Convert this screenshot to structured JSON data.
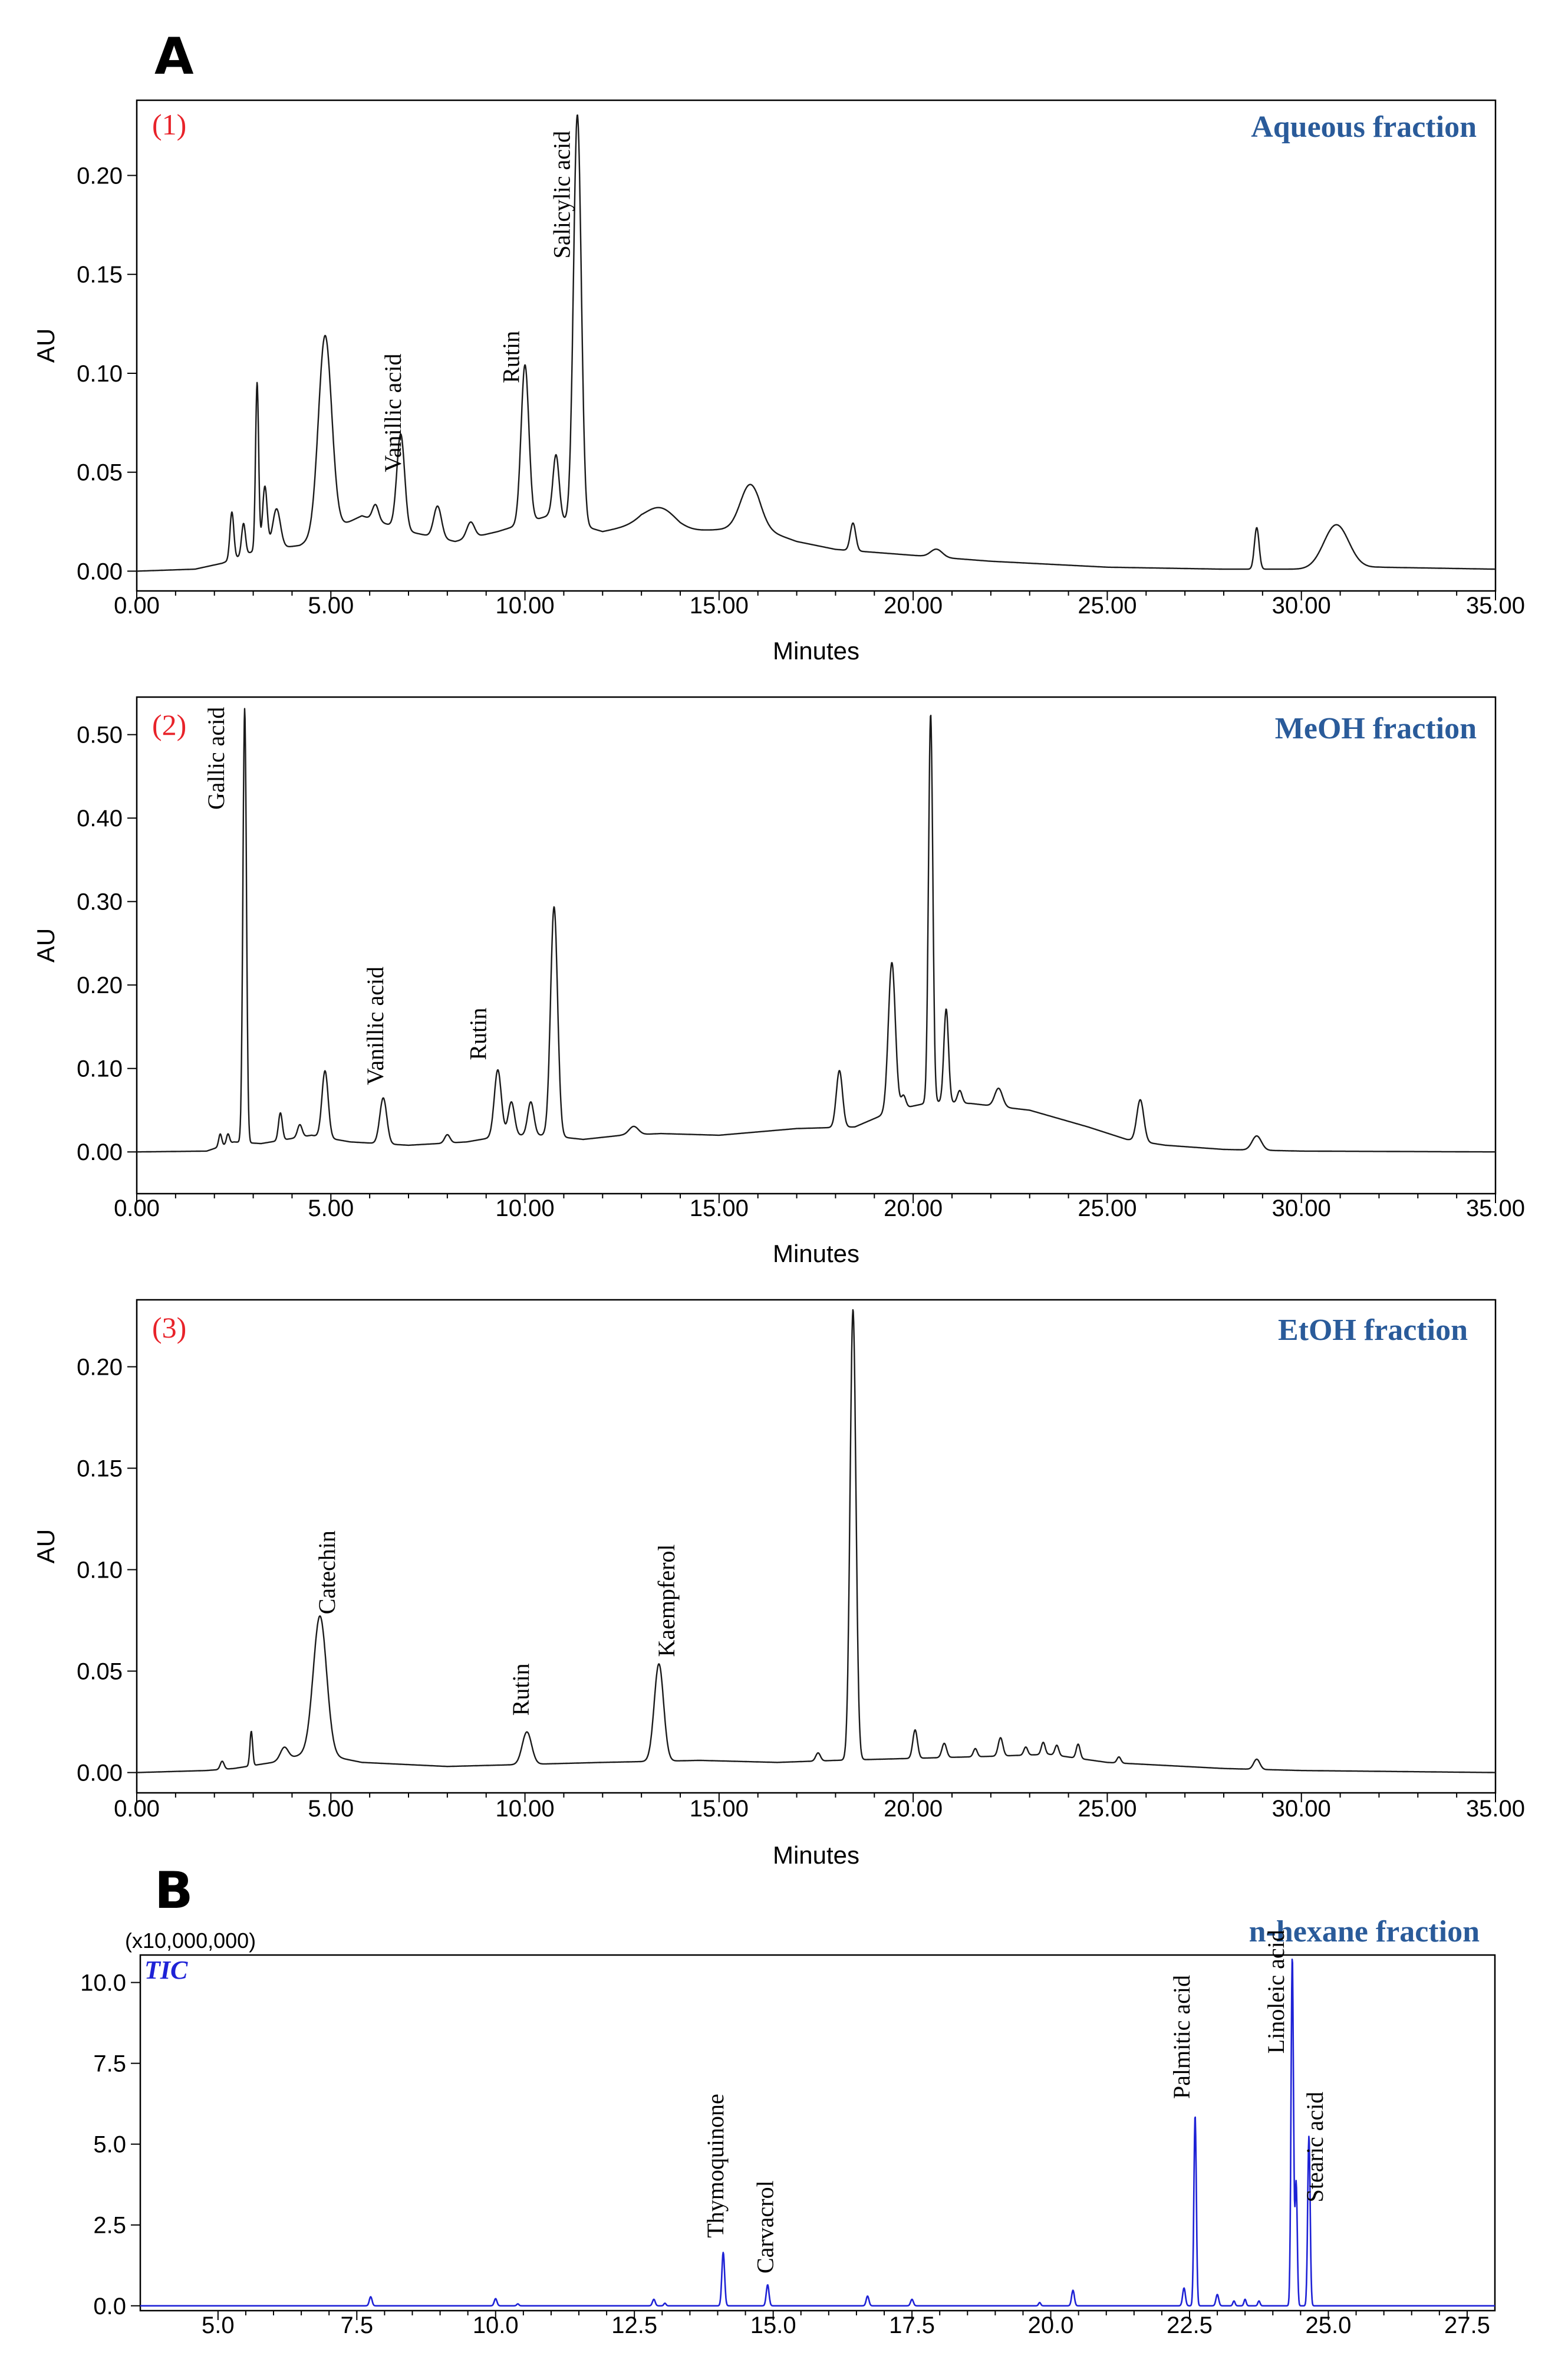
{
  "figure_labels": {
    "panel_a": "A",
    "panel_b": "B"
  },
  "colors": {
    "fraction_label": "#2a5b9a",
    "panel_number": "#e8232a",
    "tic_trace": "#1e22d6",
    "hplc_trace": "#1a1a1a"
  },
  "chart_data": [
    {
      "type": "line",
      "panel_number": "(1)",
      "title": "Aqueous fraction",
      "xlabel": "Minutes",
      "ylabel": "AU",
      "xlim": [
        0,
        35
      ],
      "ylim": [
        -0.01,
        0.238
      ],
      "xticks": [
        0,
        5,
        10,
        15,
        20,
        25,
        30,
        35
      ],
      "xtick_labels": [
        "0.00",
        "5.00",
        "10.00",
        "15.00",
        "20.00",
        "25.00",
        "30.00",
        "35.00"
      ],
      "yticks": [
        0,
        0.05,
        0.1,
        0.15,
        0.2
      ],
      "ytick_labels": [
        "0.00",
        "0.05",
        "0.10",
        "0.15",
        "0.20"
      ],
      "baseline": [
        [
          0,
          0
        ],
        [
          1.5,
          0.001
        ],
        [
          2.2,
          0.004
        ],
        [
          3.0,
          0.01
        ],
        [
          4.2,
          0.013
        ],
        [
          5.8,
          0.028
        ],
        [
          7.0,
          0.02
        ],
        [
          8.2,
          0.015
        ],
        [
          9.3,
          0.02
        ],
        [
          10.6,
          0.028
        ],
        [
          12.0,
          0.02
        ],
        [
          13.0,
          0.024
        ],
        [
          14.0,
          0.02
        ],
        [
          16.0,
          0.022
        ],
        [
          17.0,
          0.015
        ],
        [
          18.0,
          0.011
        ],
        [
          20.0,
          0.008
        ],
        [
          22.0,
          0.005
        ],
        [
          25.0,
          0.002
        ],
        [
          28.0,
          0.001
        ],
        [
          30.0,
          0.001
        ],
        [
          32.0,
          0.002
        ],
        [
          35.0,
          0.001
        ]
      ],
      "peaks": [
        {
          "x": 2.45,
          "height": 0.024,
          "width": 0.05
        },
        {
          "x": 2.75,
          "height": 0.016,
          "width": 0.05
        },
        {
          "x": 3.1,
          "height": 0.085,
          "width": 0.04
        },
        {
          "x": 3.3,
          "height": 0.032,
          "width": 0.06
        },
        {
          "x": 3.6,
          "height": 0.02,
          "width": 0.1
        },
        {
          "x": 4.85,
          "height": 0.1,
          "width": 0.17
        },
        {
          "x": 6.15,
          "height": 0.008,
          "width": 0.08
        },
        {
          "x": 6.8,
          "height": 0.048,
          "width": 0.1
        },
        {
          "x": 7.75,
          "height": 0.016,
          "width": 0.1
        },
        {
          "x": 8.6,
          "height": 0.008,
          "width": 0.1
        },
        {
          "x": 10.0,
          "height": 0.08,
          "width": 0.1
        },
        {
          "x": 10.8,
          "height": 0.032,
          "width": 0.08
        },
        {
          "x": 11.35,
          "height": 0.207,
          "width": 0.1
        },
        {
          "x": 13.5,
          "height": 0.01,
          "width": 0.4
        },
        {
          "x": 15.8,
          "height": 0.022,
          "width": 0.25
        },
        {
          "x": 18.45,
          "height": 0.014,
          "width": 0.07
        },
        {
          "x": 20.6,
          "height": 0.004,
          "width": 0.15
        },
        {
          "x": 28.85,
          "height": 0.021,
          "width": 0.06
        },
        {
          "x": 30.9,
          "height": 0.022,
          "width": 0.32
        }
      ],
      "annotations": [
        {
          "label": "Vanillic acid",
          "x": 6.8,
          "y": 0.05
        },
        {
          "label": "Rutin",
          "x": 9.85,
          "y": 0.095
        },
        {
          "label": "Salicylic acid",
          "x": 11.15,
          "y": 0.158
        }
      ]
    },
    {
      "type": "line",
      "panel_number": "(2)",
      "title": "MeOH fraction",
      "xlabel": "Minutes",
      "ylabel": "AU",
      "xlim": [
        0,
        35
      ],
      "ylim": [
        -0.05,
        0.545
      ],
      "xticks": [
        0,
        5,
        10,
        15,
        20,
        25,
        30,
        35
      ],
      "xtick_labels": [
        "0.00",
        "5.00",
        "10.00",
        "15.00",
        "20.00",
        "25.00",
        "30.00",
        "35.00"
      ],
      "yticks": [
        0,
        0.1,
        0.2,
        0.3,
        0.4,
        0.5
      ],
      "ytick_labels": [
        "0.00",
        "0.10",
        "0.20",
        "0.30",
        "0.40",
        "0.50"
      ],
      "baseline": [
        [
          0,
          0
        ],
        [
          1.8,
          0.001
        ],
        [
          2.5,
          0.012
        ],
        [
          3.2,
          0.01
        ],
        [
          4.5,
          0.02
        ],
        [
          5.5,
          0.012
        ],
        [
          7.0,
          0.008
        ],
        [
          8.5,
          0.012
        ],
        [
          9.5,
          0.02
        ],
        [
          10.5,
          0.02
        ],
        [
          11.5,
          0.015
        ],
        [
          12.5,
          0.02
        ],
        [
          13.5,
          0.022
        ],
        [
          15.0,
          0.02
        ],
        [
          17.0,
          0.028
        ],
        [
          18.5,
          0.03
        ],
        [
          19.5,
          0.05
        ],
        [
          20.5,
          0.06
        ],
        [
          21.5,
          0.058
        ],
        [
          23.0,
          0.05
        ],
        [
          24.5,
          0.03
        ],
        [
          25.5,
          0.015
        ],
        [
          26.5,
          0.008
        ],
        [
          28.0,
          0.003
        ],
        [
          30.0,
          0.001
        ],
        [
          35.0,
          0
        ]
      ],
      "peaks": [
        {
          "x": 2.15,
          "height": 0.015,
          "width": 0.04
        },
        {
          "x": 2.35,
          "height": 0.012,
          "width": 0.04
        },
        {
          "x": 2.78,
          "height": 0.52,
          "width": 0.045
        },
        {
          "x": 3.7,
          "height": 0.033,
          "width": 0.05
        },
        {
          "x": 4.2,
          "height": 0.015,
          "width": 0.06
        },
        {
          "x": 4.85,
          "height": 0.08,
          "width": 0.08
        },
        {
          "x": 6.35,
          "height": 0.055,
          "width": 0.09
        },
        {
          "x": 8.0,
          "height": 0.01,
          "width": 0.07
        },
        {
          "x": 9.3,
          "height": 0.08,
          "width": 0.09
        },
        {
          "x": 9.65,
          "height": 0.04,
          "width": 0.08
        },
        {
          "x": 10.15,
          "height": 0.04,
          "width": 0.08
        },
        {
          "x": 10.75,
          "height": 0.275,
          "width": 0.09
        },
        {
          "x": 12.8,
          "height": 0.01,
          "width": 0.12
        },
        {
          "x": 18.1,
          "height": 0.068,
          "width": 0.08
        },
        {
          "x": 19.45,
          "height": 0.178,
          "width": 0.09
        },
        {
          "x": 19.75,
          "height": 0.015,
          "width": 0.06
        },
        {
          "x": 20.45,
          "height": 0.465,
          "width": 0.055
        },
        {
          "x": 20.85,
          "height": 0.112,
          "width": 0.06
        },
        {
          "x": 21.2,
          "height": 0.015,
          "width": 0.06
        },
        {
          "x": 22.2,
          "height": 0.022,
          "width": 0.1
        },
        {
          "x": 25.85,
          "height": 0.05,
          "width": 0.09
        },
        {
          "x": 28.85,
          "height": 0.017,
          "width": 0.12
        }
      ],
      "annotations": [
        {
          "label": "Gallic acid",
          "x": 2.25,
          "y": 0.41
        },
        {
          "label": "Vanillic acid",
          "x": 6.35,
          "y": 0.08
        },
        {
          "label": "Rutin",
          "x": 9.0,
          "y": 0.11
        }
      ]
    },
    {
      "type": "line",
      "panel_number": "(3)",
      "title": "EtOH fraction",
      "xlabel": "Minutes",
      "ylabel": "AU",
      "xlim": [
        0,
        35
      ],
      "ylim": [
        -0.01,
        0.233
      ],
      "xticks": [
        0,
        5,
        10,
        15,
        20,
        25,
        30,
        35
      ],
      "xtick_labels": [
        "0.00",
        "5.00",
        "10.00",
        "15.00",
        "20.00",
        "25.00",
        "30.00",
        "35.00"
      ],
      "yticks": [
        0,
        0.05,
        0.1,
        0.15,
        0.2
      ],
      "ytick_labels": [
        "0.00",
        "0.05",
        "0.10",
        "0.15",
        "0.20"
      ],
      "baseline": [
        [
          0,
          0
        ],
        [
          1.8,
          0.001
        ],
        [
          2.5,
          0.002
        ],
        [
          3.5,
          0.005
        ],
        [
          4.5,
          0.01
        ],
        [
          5.8,
          0.005
        ],
        [
          8.0,
          0.003
        ],
        [
          10.0,
          0.004
        ],
        [
          12.0,
          0.005
        ],
        [
          14.5,
          0.006
        ],
        [
          16.5,
          0.005
        ],
        [
          18.0,
          0.006
        ],
        [
          20.0,
          0.007
        ],
        [
          22.0,
          0.008
        ],
        [
          23.5,
          0.009
        ],
        [
          25.0,
          0.005
        ],
        [
          28.0,
          0.002
        ],
        [
          30.0,
          0.001
        ],
        [
          35.0,
          0
        ]
      ],
      "peaks": [
        {
          "x": 2.2,
          "height": 0.004,
          "width": 0.05
        },
        {
          "x": 2.95,
          "height": 0.017,
          "width": 0.035
        },
        {
          "x": 3.8,
          "height": 0.006,
          "width": 0.1
        },
        {
          "x": 4.72,
          "height": 0.068,
          "width": 0.17
        },
        {
          "x": 10.05,
          "height": 0.016,
          "width": 0.12
        },
        {
          "x": 13.45,
          "height": 0.048,
          "width": 0.12
        },
        {
          "x": 17.55,
          "height": 0.004,
          "width": 0.06
        },
        {
          "x": 18.45,
          "height": 0.222,
          "width": 0.075
        },
        {
          "x": 20.05,
          "height": 0.014,
          "width": 0.06
        },
        {
          "x": 20.8,
          "height": 0.007,
          "width": 0.06
        },
        {
          "x": 21.6,
          "height": 0.004,
          "width": 0.05
        },
        {
          "x": 22.25,
          "height": 0.009,
          "width": 0.06
        },
        {
          "x": 22.9,
          "height": 0.004,
          "width": 0.05
        },
        {
          "x": 23.35,
          "height": 0.006,
          "width": 0.05
        },
        {
          "x": 23.7,
          "height": 0.005,
          "width": 0.05
        },
        {
          "x": 24.25,
          "height": 0.007,
          "width": 0.05
        },
        {
          "x": 25.3,
          "height": 0.003,
          "width": 0.05
        },
        {
          "x": 28.85,
          "height": 0.005,
          "width": 0.08
        }
      ],
      "annotations": [
        {
          "label": "Catechin",
          "x": 5.1,
          "y": 0.078
        },
        {
          "label": "Rutin",
          "x": 10.1,
          "y": 0.028
        },
        {
          "label": "Kaempferol",
          "x": 13.85,
          "y": 0.057
        }
      ]
    },
    {
      "type": "line",
      "panel_number": "TIC",
      "title": "n-hexane fraction",
      "multiplier": "(x10,000,000)",
      "xlabel": "",
      "ylabel": "",
      "xlim": [
        3.6,
        28.0
      ],
      "ylim": [
        -0.15,
        10.85
      ],
      "xticks": [
        5.0,
        7.5,
        10.0,
        12.5,
        15.0,
        17.5,
        20.0,
        22.5,
        25.0,
        27.5
      ],
      "xtick_labels": [
        "5.0",
        "7.5",
        "10.0",
        "12.5",
        "15.0",
        "17.5",
        "20.0",
        "22.5",
        "25.0",
        "27.5"
      ],
      "yticks": [
        0,
        2.5,
        5.0,
        7.5,
        10.0
      ],
      "ytick_labels": [
        "0.0",
        "2.5",
        "5.0",
        "7.5",
        "10.0"
      ],
      "baseline": [
        [
          3.6,
          0
        ],
        [
          28.0,
          0
        ]
      ],
      "peaks": [
        {
          "x": 7.75,
          "height": 0.28,
          "width": 0.025
        },
        {
          "x": 10.0,
          "height": 0.22,
          "width": 0.025
        },
        {
          "x": 10.4,
          "height": 0.06,
          "width": 0.02
        },
        {
          "x": 12.85,
          "height": 0.2,
          "width": 0.025
        },
        {
          "x": 13.05,
          "height": 0.08,
          "width": 0.02
        },
        {
          "x": 14.1,
          "height": 1.65,
          "width": 0.025
        },
        {
          "x": 14.9,
          "height": 0.65,
          "width": 0.025
        },
        {
          "x": 16.7,
          "height": 0.3,
          "width": 0.025
        },
        {
          "x": 17.5,
          "height": 0.2,
          "width": 0.025
        },
        {
          "x": 19.8,
          "height": 0.1,
          "width": 0.02
        },
        {
          "x": 20.4,
          "height": 0.48,
          "width": 0.025
        },
        {
          "x": 22.4,
          "height": 0.55,
          "width": 0.025
        },
        {
          "x": 22.6,
          "height": 5.9,
          "width": 0.022
        },
        {
          "x": 23.0,
          "height": 0.35,
          "width": 0.025
        },
        {
          "x": 23.3,
          "height": 0.15,
          "width": 0.02
        },
        {
          "x": 23.5,
          "height": 0.2,
          "width": 0.02
        },
        {
          "x": 23.75,
          "height": 0.15,
          "width": 0.02
        },
        {
          "x": 24.35,
          "height": 10.8,
          "width": 0.022
        },
        {
          "x": 24.42,
          "height": 3.8,
          "width": 0.02
        },
        {
          "x": 24.65,
          "height": 5.25,
          "width": 0.022
        }
      ],
      "annotations": [
        {
          "label": "Thymoquinone",
          "x": 14.1,
          "y": 2.1
        },
        {
          "label": "Carvacrol",
          "x": 15.0,
          "y": 1.0
        },
        {
          "label": "Palmitic acid",
          "x": 22.5,
          "y": 6.4
        },
        {
          "label": "Linoleic acid",
          "x": 24.2,
          "y": 7.8
        },
        {
          "label": "Stearic acid",
          "x": 24.9,
          "y": 3.2
        }
      ]
    }
  ]
}
